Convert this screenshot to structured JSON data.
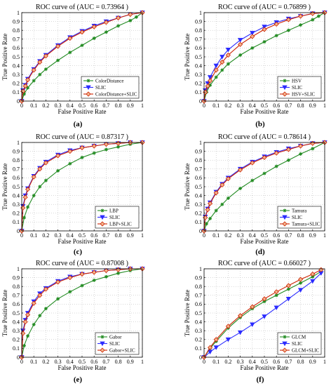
{
  "colors": {
    "feature": "#228b22",
    "slic": "#2b2bff",
    "combined": "#cc2200",
    "combined_marker_fill": "#f2b48c"
  },
  "chart_data": [
    {
      "type": "line",
      "panel": "(a)",
      "title": "ROC curve of (AUC = 0.73964 )",
      "xlabel": "False Positive Rate",
      "ylabel": "True Positive Rate",
      "xlim": [
        0,
        1
      ],
      "ylim": [
        0,
        1
      ],
      "xticks": [
        "0",
        "0.1",
        "0.2",
        "0.3",
        "0.4",
        "0.5",
        "0.6",
        "0.7",
        "0.8",
        "0.9",
        "1"
      ],
      "yticks": [
        "0",
        "0.1",
        "0.2",
        "0.3",
        "0.4",
        "0.5",
        "0.6",
        "0.7",
        "0.8",
        "0.9",
        "1"
      ],
      "legend_position": "bottom-right",
      "series": [
        {
          "name": "ColorDistance",
          "marker": "star",
          "x": [
            0,
            0.02,
            0.05,
            0.1,
            0.15,
            0.2,
            0.3,
            0.4,
            0.5,
            0.6,
            0.7,
            0.8,
            0.9,
            0.95,
            1
          ],
          "y": [
            0,
            0.08,
            0.15,
            0.23,
            0.3,
            0.36,
            0.46,
            0.55,
            0.63,
            0.71,
            0.78,
            0.85,
            0.91,
            0.95,
            1
          ]
        },
        {
          "name": "SLIC",
          "marker": "triangle-down",
          "x": [
            0,
            0.01,
            0.03,
            0.05,
            0.1,
            0.15,
            0.2,
            0.3,
            0.4,
            0.5,
            0.6,
            0.7,
            0.8,
            0.9,
            1
          ],
          "y": [
            0,
            0.12,
            0.18,
            0.25,
            0.36,
            0.45,
            0.52,
            0.63,
            0.72,
            0.79,
            0.85,
            0.9,
            0.94,
            0.98,
            1
          ]
        },
        {
          "name": "ColorDistance+SLIC",
          "marker": "diamond",
          "x": [
            0,
            0.01,
            0.03,
            0.05,
            0.1,
            0.15,
            0.2,
            0.3,
            0.4,
            0.5,
            0.6,
            0.7,
            0.8,
            0.9,
            1
          ],
          "y": [
            0,
            0.11,
            0.17,
            0.24,
            0.35,
            0.44,
            0.51,
            0.62,
            0.71,
            0.78,
            0.84,
            0.89,
            0.94,
            0.98,
            1
          ]
        }
      ]
    },
    {
      "type": "line",
      "panel": "(b)",
      "title": "ROC curve of (AUC = 0.76899 )",
      "xlabel": "False Positive Rate",
      "ylabel": "True Positive Rate",
      "xlim": [
        0,
        1
      ],
      "ylim": [
        0,
        1
      ],
      "xticks": [
        "0",
        "0.1",
        "0.2",
        "0.3",
        "0.4",
        "0.5",
        "0.6",
        "0.7",
        "0.8",
        "0.9",
        "1"
      ],
      "yticks": [
        "0",
        "0.1",
        "0.2",
        "0.3",
        "0.4",
        "0.5",
        "0.6",
        "0.7",
        "0.8",
        "0.9",
        "1"
      ],
      "legend_position": "bottom-right",
      "series": [
        {
          "name": "HSV",
          "marker": "star",
          "x": [
            0,
            0.02,
            0.05,
            0.1,
            0.15,
            0.2,
            0.3,
            0.4,
            0.5,
            0.6,
            0.7,
            0.8,
            0.9,
            0.95,
            1
          ],
          "y": [
            0,
            0.1,
            0.18,
            0.27,
            0.35,
            0.42,
            0.52,
            0.6,
            0.67,
            0.74,
            0.8,
            0.86,
            0.92,
            0.96,
            1
          ]
        },
        {
          "name": "SLIC",
          "marker": "triangle-down",
          "x": [
            0,
            0.01,
            0.03,
            0.05,
            0.1,
            0.15,
            0.2,
            0.3,
            0.4,
            0.5,
            0.6,
            0.7,
            0.8,
            0.9,
            1
          ],
          "y": [
            0,
            0.12,
            0.2,
            0.27,
            0.4,
            0.5,
            0.58,
            0.69,
            0.77,
            0.84,
            0.89,
            0.93,
            0.96,
            0.99,
            1
          ]
        },
        {
          "name": "HSV+SLIC",
          "marker": "diamond",
          "x": [
            0,
            0.01,
            0.03,
            0.05,
            0.1,
            0.15,
            0.2,
            0.3,
            0.4,
            0.5,
            0.6,
            0.7,
            0.8,
            0.9,
            1
          ],
          "y": [
            0,
            0.1,
            0.17,
            0.23,
            0.35,
            0.44,
            0.52,
            0.64,
            0.73,
            0.81,
            0.87,
            0.92,
            0.96,
            0.99,
            1
          ]
        }
      ]
    },
    {
      "type": "line",
      "panel": "(c)",
      "title": "ROC curve of (AUC = 0.87317 )",
      "xlabel": "False Positive Rate",
      "ylabel": "True Positive Rate",
      "xlim": [
        0,
        1
      ],
      "ylim": [
        0,
        1
      ],
      "xticks": [
        "0",
        "0.1",
        "0.2",
        "0.3",
        "0.4",
        "0.5",
        "0.6",
        "0.7",
        "0.8",
        "0.9",
        "1"
      ],
      "yticks": [
        "0",
        "0.1",
        "0.2",
        "0.3",
        "0.4",
        "0.5",
        "0.6",
        "0.7",
        "0.8",
        "0.9",
        "1"
      ],
      "legend_position": "bottom-right",
      "series": [
        {
          "name": "LBP",
          "marker": "star",
          "x": [
            0,
            0.02,
            0.05,
            0.1,
            0.15,
            0.2,
            0.3,
            0.4,
            0.5,
            0.6,
            0.7,
            0.8,
            0.9,
            1
          ],
          "y": [
            0,
            0.15,
            0.27,
            0.4,
            0.5,
            0.57,
            0.68,
            0.76,
            0.83,
            0.88,
            0.92,
            0.95,
            0.98,
            1
          ]
        },
        {
          "name": "SLIC",
          "marker": "triangle-down",
          "x": [
            0,
            0.01,
            0.03,
            0.05,
            0.1,
            0.15,
            0.2,
            0.3,
            0.4,
            0.5,
            0.6,
            0.7,
            0.8,
            0.9,
            1
          ],
          "y": [
            0,
            0.28,
            0.4,
            0.48,
            0.62,
            0.71,
            0.78,
            0.86,
            0.91,
            0.94,
            0.96,
            0.98,
            0.99,
            1.0,
            1
          ]
        },
        {
          "name": "LBP+SLIC",
          "marker": "diamond",
          "x": [
            0,
            0.01,
            0.03,
            0.05,
            0.1,
            0.15,
            0.2,
            0.3,
            0.4,
            0.5,
            0.6,
            0.7,
            0.8,
            0.9,
            1
          ],
          "y": [
            0,
            0.26,
            0.38,
            0.47,
            0.61,
            0.7,
            0.77,
            0.85,
            0.9,
            0.94,
            0.96,
            0.98,
            0.99,
            1.0,
            1
          ]
        }
      ]
    },
    {
      "type": "line",
      "panel": "(d)",
      "title": "ROC curve of (AUC = 0.78614 )",
      "xlabel": "False Positive Rate",
      "ylabel": "True Positive Rate",
      "xlim": [
        0,
        1
      ],
      "ylim": [
        0,
        1
      ],
      "xticks": [
        "0",
        "0.1",
        "0.2",
        "0.3",
        "0.4",
        "0.5",
        "0.6",
        "0.7",
        "0.8",
        "0.9",
        "1"
      ],
      "yticks": [
        "0",
        "0.1",
        "0.2",
        "0.3",
        "0.4",
        "0.5",
        "0.6",
        "0.7",
        "0.8",
        "0.9",
        "1"
      ],
      "legend_position": "bottom-right",
      "series": [
        {
          "name": "Tamura",
          "marker": "star",
          "x": [
            0,
            0.02,
            0.05,
            0.1,
            0.15,
            0.2,
            0.3,
            0.4,
            0.5,
            0.6,
            0.7,
            0.8,
            0.9,
            1
          ],
          "y": [
            0,
            0.08,
            0.14,
            0.23,
            0.3,
            0.37,
            0.48,
            0.57,
            0.65,
            0.73,
            0.8,
            0.87,
            0.93,
            1
          ]
        },
        {
          "name": "SLIC",
          "marker": "triangle-down",
          "x": [
            0,
            0.01,
            0.03,
            0.05,
            0.1,
            0.15,
            0.2,
            0.3,
            0.4,
            0.5,
            0.6,
            0.7,
            0.8,
            0.9,
            1
          ],
          "y": [
            0,
            0.16,
            0.25,
            0.32,
            0.44,
            0.53,
            0.6,
            0.7,
            0.78,
            0.84,
            0.89,
            0.93,
            0.96,
            0.99,
            1
          ]
        },
        {
          "name": "Tamura+SLIC",
          "marker": "diamond",
          "x": [
            0,
            0.01,
            0.03,
            0.05,
            0.1,
            0.15,
            0.2,
            0.3,
            0.4,
            0.5,
            0.6,
            0.7,
            0.8,
            0.9,
            1
          ],
          "y": [
            0,
            0.15,
            0.24,
            0.31,
            0.43,
            0.52,
            0.59,
            0.69,
            0.77,
            0.83,
            0.88,
            0.92,
            0.96,
            0.99,
            1
          ]
        }
      ]
    },
    {
      "type": "line",
      "panel": "(e)",
      "title": "ROC curve of (AUC = 0.87008 )",
      "xlabel": "False Positive Rate",
      "ylabel": "True Positive Rate",
      "xlim": [
        0,
        1
      ],
      "ylim": [
        0,
        1
      ],
      "xticks": [
        "0",
        "0.1",
        "0.2",
        "0.3",
        "0.4",
        "0.5",
        "0.6",
        "0.7",
        "0.8",
        "0.9",
        "1"
      ],
      "yticks": [
        "0",
        "0.1",
        "0.2",
        "0.3",
        "0.4",
        "0.5",
        "0.6",
        "0.7",
        "0.8",
        "0.9",
        "1"
      ],
      "legend_position": "bottom-right",
      "series": [
        {
          "name": "Gabor",
          "marker": "star",
          "x": [
            0,
            0.02,
            0.05,
            0.1,
            0.15,
            0.2,
            0.3,
            0.4,
            0.5,
            0.6,
            0.7,
            0.8,
            0.9,
            1
          ],
          "y": [
            0,
            0.13,
            0.24,
            0.37,
            0.47,
            0.55,
            0.66,
            0.74,
            0.81,
            0.87,
            0.91,
            0.95,
            0.98,
            1
          ]
        },
        {
          "name": "SLIC",
          "marker": "triangle-down",
          "x": [
            0,
            0.01,
            0.03,
            0.05,
            0.1,
            0.15,
            0.2,
            0.3,
            0.4,
            0.5,
            0.6,
            0.7,
            0.8,
            0.9,
            1
          ],
          "y": [
            0,
            0.3,
            0.42,
            0.5,
            0.63,
            0.72,
            0.78,
            0.86,
            0.91,
            0.94,
            0.96,
            0.98,
            0.99,
            1.0,
            1
          ]
        },
        {
          "name": "Gabor+SLIC",
          "marker": "diamond",
          "x": [
            0,
            0.01,
            0.03,
            0.05,
            0.1,
            0.15,
            0.2,
            0.3,
            0.4,
            0.5,
            0.6,
            0.7,
            0.8,
            0.9,
            1
          ],
          "y": [
            0,
            0.27,
            0.4,
            0.48,
            0.61,
            0.7,
            0.77,
            0.85,
            0.9,
            0.94,
            0.96,
            0.98,
            0.99,
            1.0,
            1
          ]
        }
      ]
    },
    {
      "type": "line",
      "panel": "(f)",
      "title": "ROC curve of (AUC = 0.66027 )",
      "xlabel": "False Positive Rate",
      "ylabel": "True Positive Rate",
      "xlim": [
        0,
        1
      ],
      "ylim": [
        0,
        1
      ],
      "xticks": [
        "0",
        "0.1",
        "0.2",
        "0.3",
        "0.4",
        "0.5",
        "0.6",
        "0.7",
        "0.8",
        "0.9",
        "1"
      ],
      "yticks": [
        "0",
        "0.1",
        "0.2",
        "0.3",
        "0.4",
        "0.5",
        "0.6",
        "0.7",
        "0.8",
        "0.9",
        "1"
      ],
      "legend_position": "bottom-right",
      "series": [
        {
          "name": "GLCM",
          "marker": "star",
          "x": [
            0,
            0.05,
            0.1,
            0.2,
            0.3,
            0.4,
            0.5,
            0.6,
            0.7,
            0.8,
            0.9,
            0.97
          ],
          "y": [
            0,
            0.1,
            0.18,
            0.33,
            0.45,
            0.55,
            0.63,
            0.7,
            0.77,
            0.84,
            0.91,
            0.97
          ]
        },
        {
          "name": "SLIC",
          "marker": "triangle-down",
          "x": [
            0,
            0.05,
            0.1,
            0.2,
            0.3,
            0.4,
            0.5,
            0.6,
            0.7,
            0.8,
            0.9,
            0.97
          ],
          "y": [
            0,
            0.06,
            0.11,
            0.2,
            0.28,
            0.37,
            0.46,
            0.56,
            0.66,
            0.76,
            0.86,
            0.95
          ]
        },
        {
          "name": "GLCM+SLIC",
          "marker": "diamond",
          "x": [
            0,
            0.05,
            0.1,
            0.2,
            0.3,
            0.4,
            0.5,
            0.6,
            0.7,
            0.8,
            0.9,
            0.97
          ],
          "y": [
            0,
            0.11,
            0.2,
            0.35,
            0.47,
            0.57,
            0.66,
            0.74,
            0.81,
            0.88,
            0.94,
            0.99
          ]
        }
      ]
    }
  ]
}
